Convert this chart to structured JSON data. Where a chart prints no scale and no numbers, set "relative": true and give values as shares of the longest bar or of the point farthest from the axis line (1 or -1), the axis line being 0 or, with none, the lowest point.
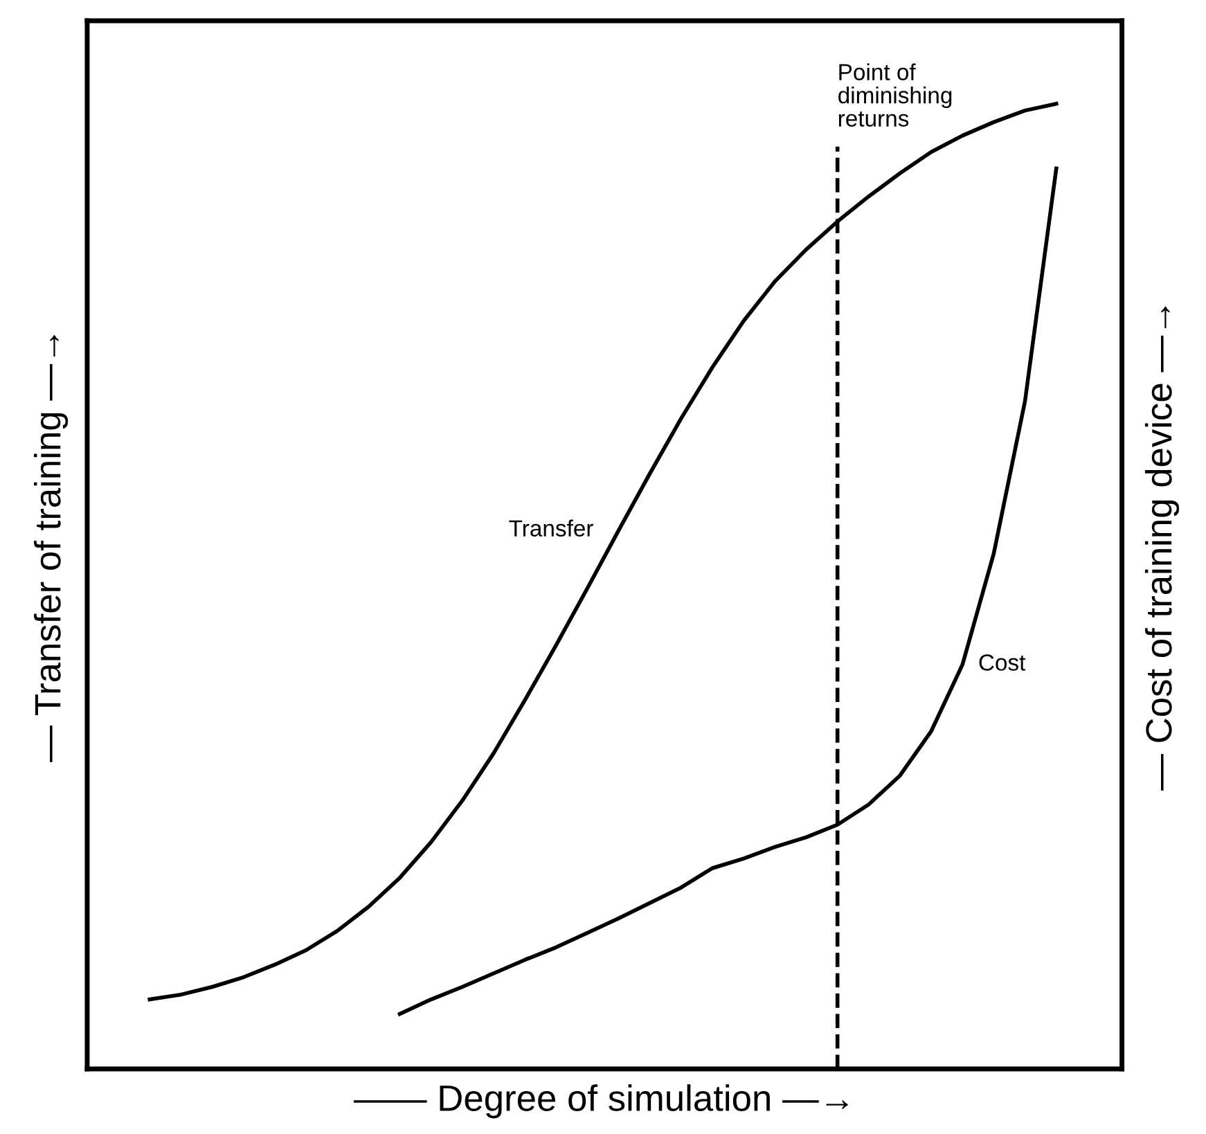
{
  "chart_data": {
    "type": "line",
    "relative": true,
    "xlabel": "—— Degree of simulation —→",
    "ylabel": "— Transfer of training —→",
    "y2label": "— Cost of training device —→",
    "categories": [
      null,
      null,
      null,
      null,
      null,
      null,
      null,
      null,
      null,
      null,
      null,
      null,
      null,
      null,
      null,
      null,
      null,
      null,
      null,
      null,
      null,
      null,
      null,
      null,
      null,
      null,
      null,
      null,
      null,
      null
    ],
    "series": [
      {
        "name": "Transfer",
        "color": "#000000",
        "values": [
          0.072,
          0.077,
          0.085,
          0.095,
          0.108,
          0.123,
          0.143,
          0.168,
          0.198,
          0.235,
          0.278,
          0.327,
          0.382,
          0.439,
          0.498,
          0.558,
          0.617,
          0.674,
          0.727,
          0.775,
          0.816,
          0.849,
          0.878,
          0.904,
          0.928,
          0.95,
          0.967,
          0.981,
          0.993,
          1.0
        ]
      },
      {
        "name": "Cost",
        "color": "#000000",
        "values": [
          null,
          null,
          null,
          null,
          null,
          null,
          null,
          null,
          0.057,
          0.072,
          0.085,
          0.099,
          0.113,
          0.126,
          0.141,
          0.156,
          0.172,
          0.188,
          0.208,
          0.218,
          0.23,
          0.24,
          0.253,
          0.274,
          0.304,
          0.35,
          0.419,
          0.534,
          0.692,
          0.933
        ]
      }
    ],
    "annotations": [
      "Point of diminishing returns"
    ],
    "legend": false,
    "marker": "none",
    "line_style": "solid"
  }
}
